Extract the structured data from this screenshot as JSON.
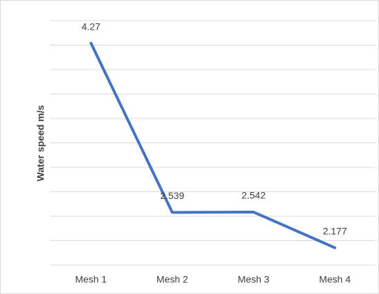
{
  "chart_data": {
    "type": "line",
    "y_label": "Water speed  m/s",
    "categories": [
      "Mesh 1",
      "Mesh 2",
      "Mesh 3",
      "Mesh 4"
    ],
    "values": [
      4.27,
      2.539,
      2.542,
      2.177
    ],
    "color": "#4472c4",
    "ylim": [
      2,
      4.5
    ],
    "yticks": [
      2,
      2.25,
      2.5,
      2.75,
      3,
      3.25,
      3.5,
      3.75,
      4,
      4.25,
      4.5
    ],
    "grid": true
  }
}
